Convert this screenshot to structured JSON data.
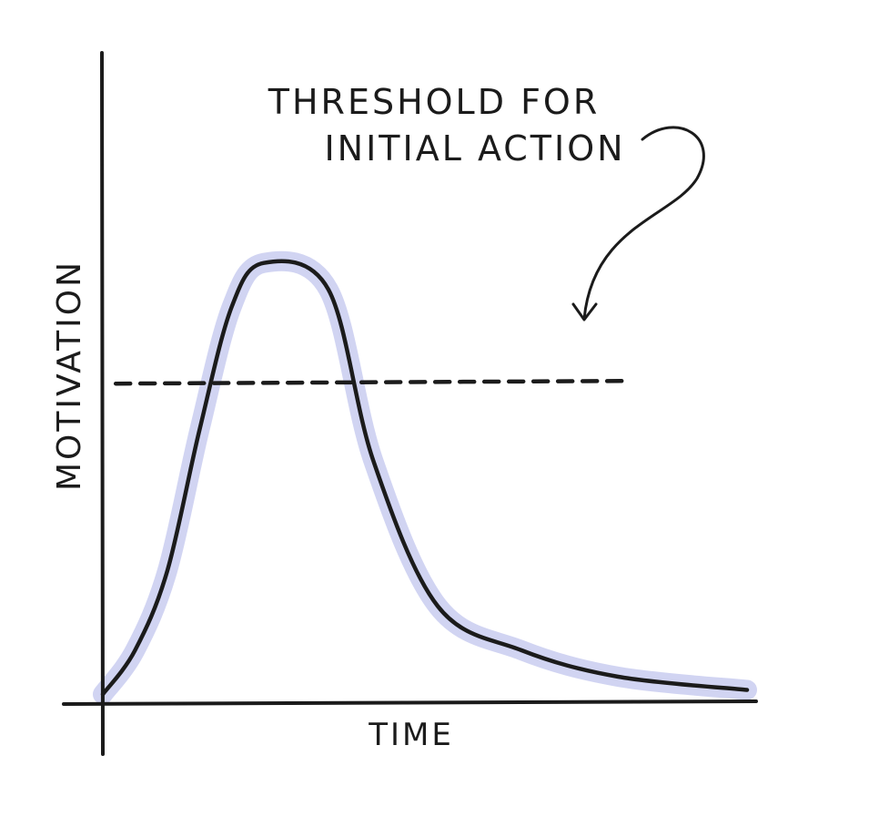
{
  "chart_data": {
    "type": "line",
    "title": "",
    "xlabel": "TIME",
    "ylabel": "MOTIVATION",
    "grid": false,
    "legend": "none",
    "series": [
      {
        "values": [
          [
            0,
            0.02
          ],
          [
            5,
            0.12
          ],
          [
            10,
            0.3
          ],
          [
            15,
            0.62
          ],
          [
            20,
            0.9
          ],
          [
            25,
            1.0
          ],
          [
            35,
            0.94
          ],
          [
            42,
            0.55
          ],
          [
            52,
            0.22
          ],
          [
            65,
            0.12
          ],
          [
            80,
            0.06
          ],
          [
            100,
            0.03
          ]
        ]
      }
    ],
    "threshold": {
      "value": 0.73,
      "x_range": [
        2,
        82
      ],
      "label_line1": "THRESHOLD FOR",
      "label_line2": "INITIAL ACTION"
    },
    "xlim": [
      0,
      100
    ],
    "ylim": [
      0,
      1.2
    ],
    "colors": {
      "ink": "#1b1b1b",
      "highlight": "#c9cdf0"
    }
  }
}
